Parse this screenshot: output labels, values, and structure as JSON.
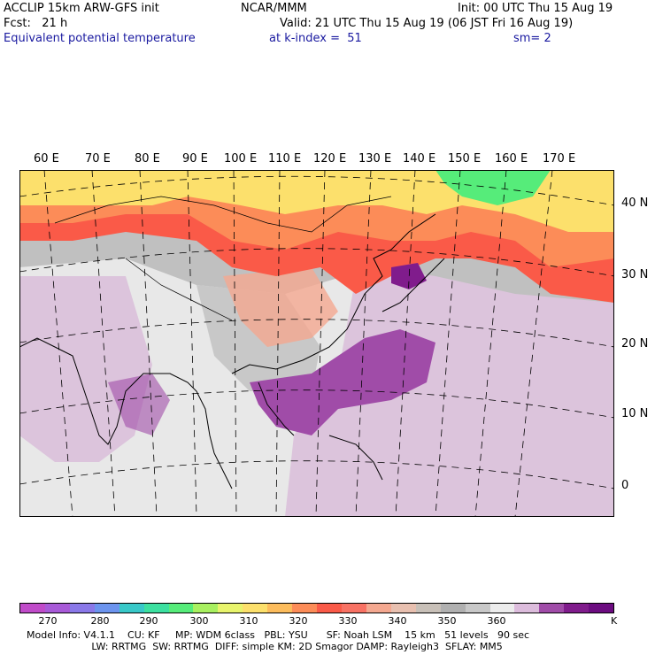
{
  "header": {
    "left_line1": "ACCLIP 15km ARW-GFS init",
    "left_line2": "Fcst:   21 h",
    "field_name": "Equivalent potential temperature",
    "center_line1": "NCAR/MMM",
    "valid": "Valid: 21 UTC Thu 15 Aug 19 (06 JST Fri 16 Aug 19)",
    "level": "at k-index =  51",
    "init": "Init: 00 UTC Thu 15 Aug 19",
    "smoothing": "sm= 2"
  },
  "map": {
    "lon_labels": [
      "60 E",
      "70 E",
      "80 E",
      "90 E",
      "100 E",
      "110 E",
      "120 E",
      "130 E",
      "140 E",
      "150 E",
      "160 E",
      "170 E"
    ],
    "lat_labels": [
      "40 N",
      "30 N",
      "20 N",
      "10 N",
      "0"
    ]
  },
  "colorbar": {
    "tick_labels": [
      "270",
      "280",
      "290",
      "300",
      "310",
      "320",
      "330",
      "340",
      "350",
      "360"
    ],
    "unit": "K",
    "colors": [
      "#c04bc9",
      "#a85ad8",
      "#8a78e8",
      "#6c94ee",
      "#38c8c8",
      "#3ce0a0",
      "#56ec7a",
      "#a8f060",
      "#e8f46c",
      "#fce06c",
      "#fcbc5c",
      "#fc8c58",
      "#fa5a48",
      "#f87264",
      "#f4a890",
      "#e8c0b0",
      "#c8c0b8",
      "#b0b0b0",
      "#c8c8c8",
      "#ececec",
      "#dcbcdc",
      "#a04ca8",
      "#801c8c",
      "#6c0c80"
    ]
  },
  "footer": {
    "line1": "Model Info: V4.1.1    CU: KF     MP: WDM 6class   PBL: YSU      SF: Noah LSM    15 km   51 levels   90 sec",
    "line2": "                     LW: RRTMG  SW: RRTMG  DIFF: simple KM: 2D Smagor DAMP: Rayleigh3  SFLAY: MM5"
  }
}
